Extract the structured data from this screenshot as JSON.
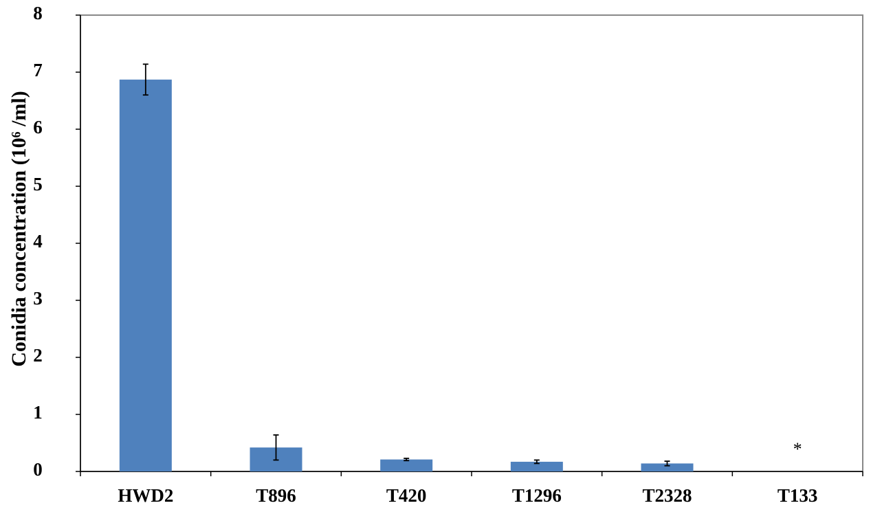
{
  "chart_data": {
    "type": "bar",
    "y_label": "Conidia concentration (10⁶ /ml)",
    "categories": [
      "HWD2",
      "T896",
      "T420",
      "T1296",
      "T2328",
      "T133"
    ],
    "values": [
      6.87,
      0.42,
      0.21,
      0.17,
      0.14,
      0
    ],
    "errors": [
      0.27,
      0.22,
      0.02,
      0.03,
      0.04,
      null
    ],
    "color": "#4f81bd",
    "ylim": [
      0,
      8
    ],
    "yticks": [
      0,
      1,
      2,
      3,
      4,
      5,
      6,
      7,
      8
    ],
    "grid": false,
    "annotations": [
      {
        "text": "*",
        "category": "T133"
      }
    ]
  }
}
